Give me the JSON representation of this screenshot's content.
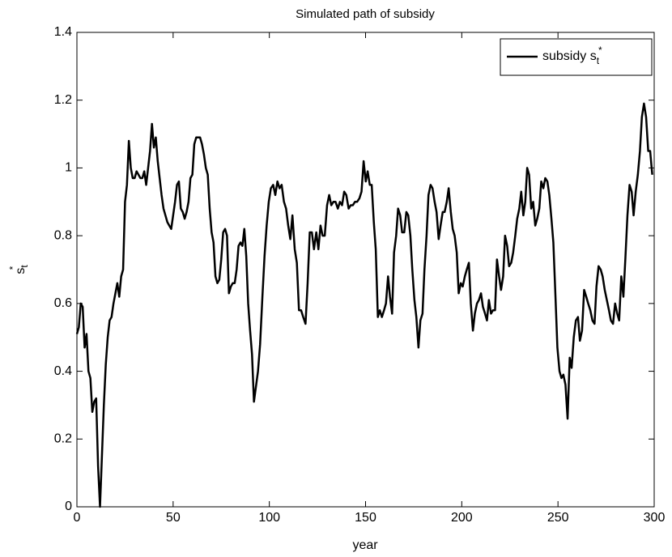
{
  "chart_data": {
    "type": "line",
    "title": "Simulated path of subsidy",
    "xlabel": "year",
    "ylabel": {
      "text": "s",
      "subscript": "t",
      "superscript": "*"
    },
    "xlim": [
      0,
      300
    ],
    "ylim": [
      0,
      1.4
    ],
    "xticks": [
      0,
      50,
      100,
      150,
      200,
      250,
      300
    ],
    "yticks": [
      0,
      0.2,
      0.4,
      0.6,
      0.8,
      1,
      1.2,
      1.4
    ],
    "grid": false,
    "legend": "upper right",
    "series": [
      {
        "name": {
          "text": "subsidy s",
          "subscript": "t",
          "superscript": "*"
        },
        "color": "#000000",
        "x": [
          0,
          1,
          2,
          3,
          4,
          5,
          6,
          7,
          8,
          9,
          10,
          11,
          12,
          13,
          14,
          15,
          16,
          17,
          18,
          19,
          20,
          21,
          22,
          23,
          24,
          25,
          26,
          27,
          28,
          29,
          30,
          31,
          32,
          33,
          34,
          35,
          36,
          37,
          38,
          39,
          40,
          41,
          42,
          43,
          44,
          45,
          46,
          47,
          48,
          49,
          50,
          51,
          52,
          53,
          54,
          55,
          56,
          57,
          58,
          59,
          60,
          61,
          62,
          63,
          64,
          65,
          66,
          67,
          68,
          69,
          70,
          71,
          72,
          73,
          74,
          75,
          76,
          77,
          78,
          79,
          80,
          81,
          82,
          83,
          84,
          85,
          86,
          87,
          88,
          89,
          90,
          91,
          92,
          94.1,
          95.2,
          96.4,
          97.5,
          98.6,
          99.7,
          100.8,
          102.0,
          103.1,
          104.2,
          105.3,
          106.4,
          107.6,
          108.7,
          109.8,
          110.9,
          112.0,
          113.2,
          114.3,
          115.4,
          116.5,
          117.6,
          118.8,
          119.9,
          121.0,
          122.1,
          123.2,
          124.4,
          125.5,
          126.6,
          127.7,
          128.8,
          130.0,
          131.1,
          132.2,
          133.3,
          134.4,
          135.6,
          136.7,
          137.8,
          138.9,
          140.0,
          141.2,
          142.3,
          143.4,
          144.5,
          145.6,
          146.8,
          147.9,
          149.0,
          150.1,
          151.1,
          152.2,
          153.2,
          154.3,
          155.3,
          156.4,
          157.4,
          158.5,
          159.6,
          160.6,
          161.7,
          162.7,
          163.8,
          164.8,
          165.9,
          166.9,
          168.0,
          169.0,
          170.1,
          171.2,
          172.2,
          173.3,
          174.3,
          175.4,
          176.4,
          177.5,
          178.5,
          179.6,
          180.6,
          181.7,
          182.7,
          183.8,
          184.8,
          185.9,
          186.9,
          188.0,
          189.0,
          190.1,
          191.1,
          192.2,
          193.2,
          194.3,
          195.3,
          196.3,
          197.4,
          198.4,
          199.5,
          200.5,
          201.6,
          202.6,
          203.7,
          204.7,
          205.8,
          206.8,
          207.9,
          208.9,
          210.0,
          211.0,
          212.1,
          213.1,
          214.1,
          215.2,
          216.2,
          217.3,
          218.3,
          219.4,
          220.4,
          221.5,
          222.5,
          223.6,
          224.6,
          225.7,
          226.7,
          227.8,
          228.8,
          229.9,
          230.9,
          232.0,
          233.0,
          234.0,
          235.0,
          236.1,
          237.1,
          238.2,
          239.2,
          240.3,
          241.3,
          242.4,
          243.4,
          244.5,
          245.5,
          246.6,
          247.6,
          248.7,
          249.7,
          250.8,
          251.8,
          252.8,
          253.9,
          255.0,
          256.1,
          257.1,
          258.2,
          259.3,
          260.4,
          261.4,
          262.5,
          263.6,
          264.7,
          265.7,
          266.8,
          267.9,
          269.0,
          270.0,
          271.1,
          272.2,
          273.2,
          274.3,
          275.4,
          276.5,
          277.5,
          278.6,
          279.7,
          280.8,
          281.8,
          282.9,
          284.0,
          285.0,
          286.1,
          287.2,
          288.3,
          289.3,
          290.4,
          291.5,
          292.6,
          293.6,
          294.7,
          295.8,
          296.9,
          297.9,
          299.0
        ],
        "values": [
          0.51,
          0.53,
          0.6,
          0.59,
          0.47,
          0.51,
          0.4,
          0.38,
          0.28,
          0.31,
          0.32,
          0.12,
          0.0,
          0.15,
          0.3,
          0.42,
          0.5,
          0.55,
          0.56,
          0.6,
          0.63,
          0.66,
          0.62,
          0.68,
          0.7,
          0.9,
          0.95,
          1.08,
          1.0,
          0.97,
          0.97,
          0.99,
          0.98,
          0.97,
          0.97,
          0.99,
          0.95,
          1.0,
          1.05,
          1.13,
          1.06,
          1.09,
          1.02,
          0.97,
          0.92,
          0.88,
          0.86,
          0.84,
          0.83,
          0.82,
          0.86,
          0.9,
          0.95,
          0.96,
          0.88,
          0.87,
          0.85,
          0.87,
          0.9,
          0.97,
          0.98,
          1.07,
          1.09,
          1.09,
          1.09,
          1.07,
          1.04,
          1.0,
          0.98,
          0.88,
          0.81,
          0.78,
          0.68,
          0.66,
          0.67,
          0.73,
          0.81,
          0.82,
          0.8,
          0.63,
          0.65,
          0.66,
          0.66,
          0.7,
          0.77,
          0.78,
          0.77,
          0.82,
          0.74,
          0.6,
          0.52,
          0.45,
          0.31,
          0.4,
          0.48,
          0.62,
          0.74,
          0.83,
          0.9,
          0.94,
          0.95,
          0.92,
          0.96,
          0.94,
          0.95,
          0.9,
          0.88,
          0.83,
          0.79,
          0.86,
          0.76,
          0.72,
          0.58,
          0.58,
          0.56,
          0.54,
          0.66,
          0.81,
          0.81,
          0.76,
          0.81,
          0.76,
          0.83,
          0.8,
          0.8,
          0.89,
          0.92,
          0.89,
          0.9,
          0.9,
          0.88,
          0.9,
          0.89,
          0.93,
          0.92,
          0.88,
          0.89,
          0.89,
          0.9,
          0.9,
          0.91,
          0.93,
          1.02,
          0.96,
          0.99,
          0.95,
          0.95,
          0.84,
          0.76,
          0.56,
          0.58,
          0.56,
          0.58,
          0.6,
          0.68,
          0.62,
          0.57,
          0.75,
          0.8,
          0.88,
          0.86,
          0.81,
          0.81,
          0.87,
          0.86,
          0.8,
          0.7,
          0.61,
          0.56,
          0.47,
          0.55,
          0.57,
          0.7,
          0.8,
          0.92,
          0.95,
          0.94,
          0.9,
          0.87,
          0.79,
          0.83,
          0.87,
          0.87,
          0.9,
          0.94,
          0.87,
          0.82,
          0.8,
          0.75,
          0.63,
          0.66,
          0.65,
          0.68,
          0.7,
          0.72,
          0.6,
          0.52,
          0.57,
          0.6,
          0.61,
          0.63,
          0.59,
          0.57,
          0.55,
          0.61,
          0.57,
          0.58,
          0.58,
          0.73,
          0.68,
          0.64,
          0.68,
          0.8,
          0.77,
          0.71,
          0.72,
          0.75,
          0.8,
          0.85,
          0.88,
          0.93,
          0.86,
          0.9,
          1.0,
          0.98,
          0.88,
          0.9,
          0.83,
          0.85,
          0.88,
          0.96,
          0.94,
          0.97,
          0.96,
          0.92,
          0.85,
          0.78,
          0.62,
          0.47,
          0.4,
          0.38,
          0.39,
          0.36,
          0.26,
          0.44,
          0.41,
          0.5,
          0.55,
          0.56,
          0.49,
          0.52,
          0.64,
          0.62,
          0.6,
          0.58,
          0.55,
          0.54,
          0.65,
          0.71,
          0.7,
          0.68,
          0.64,
          0.61,
          0.58,
          0.55,
          0.54,
          0.6,
          0.57,
          0.55,
          0.68,
          0.62,
          0.73,
          0.86,
          0.95,
          0.93,
          0.86,
          0.93,
          0.98,
          1.05,
          1.15,
          1.19,
          1.15,
          1.05,
          1.05,
          0.98
        ]
      }
    ]
  }
}
